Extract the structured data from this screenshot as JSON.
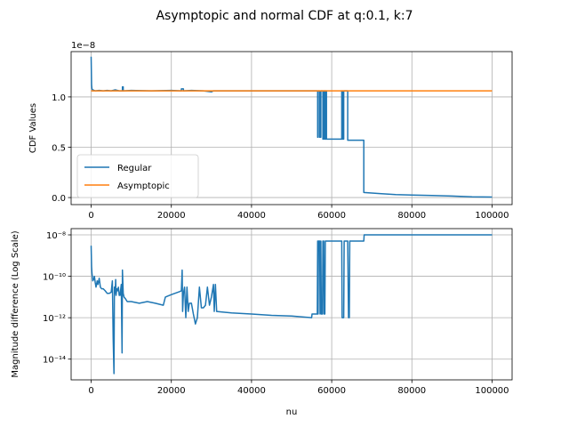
{
  "figure": {
    "title": "Asymptopic and normal CDF at q:0.1, k:7"
  },
  "chart_data": [
    {
      "type": "line",
      "title": "",
      "xlabel": "",
      "ylabel": "CDF Values",
      "y_offset_label": "1e−8",
      "xlim": [
        -5000,
        105000
      ],
      "ylim": [
        -0.07,
        1.45
      ],
      "grid": true,
      "legend_position": "lower-left",
      "x_ticks": [
        0,
        20000,
        40000,
        60000,
        80000,
        100000
      ],
      "x_tick_labels": [
        "0",
        "20000",
        "40000",
        "60000",
        "80000",
        "100000"
      ],
      "y_ticks": [
        0.0,
        0.5,
        1.0
      ],
      "y_tick_labels": [
        "0.0",
        "0.5",
        "1.0"
      ],
      "series": [
        {
          "name": "Regular",
          "color": "#1f77b4",
          "x": [
            0,
            100,
            200,
            400,
            700,
            1000,
            2000,
            3000,
            4000,
            5000,
            6000,
            7000,
            7800,
            7800,
            8000,
            8000,
            10000,
            15000,
            20000,
            22500,
            22500,
            23000,
            23000,
            25000,
            28000,
            30000,
            30500,
            31000,
            35000,
            40000,
            45000,
            50000,
            55000,
            56500,
            56500,
            56600,
            56600,
            57000,
            57000,
            57300,
            57300,
            57800,
            57800,
            58000,
            58000,
            58300,
            58300,
            58500,
            58500,
            58700,
            58700,
            62500,
            62500,
            62700,
            62700,
            63000,
            63000,
            64000,
            64000,
            64400,
            64400,
            68000,
            68000,
            72000,
            76000,
            80000,
            85000,
            90000,
            95000,
            100000
          ],
          "y": [
            1.4,
            1.12,
            1.08,
            1.07,
            1.065,
            1.06,
            1.065,
            1.06,
            1.065,
            1.06,
            1.07,
            1.06,
            1.06,
            1.1,
            1.1,
            1.06,
            1.065,
            1.06,
            1.065,
            1.06,
            1.08,
            1.08,
            1.06,
            1.065,
            1.06,
            1.05,
            1.06,
            1.06,
            1.06,
            1.06,
            1.06,
            1.06,
            1.06,
            1.06,
            0.6,
            0.6,
            1.06,
            1.06,
            0.6,
            0.6,
            1.06,
            1.06,
            0.58,
            0.58,
            1.06,
            1.06,
            0.58,
            0.58,
            1.06,
            1.06,
            0.58,
            0.58,
            1.06,
            1.06,
            0.58,
            0.58,
            1.06,
            1.06,
            0.57,
            0.57,
            0.57,
            0.57,
            0.05,
            0.04,
            0.03,
            0.025,
            0.02,
            0.015,
            0.008,
            0.005
          ]
        },
        {
          "name": "Asymptopic",
          "color": "#ff7f0e",
          "x": [
            0,
            100000
          ],
          "y": [
            1.06,
            1.06
          ]
        }
      ]
    },
    {
      "type": "line",
      "title": "",
      "xlabel": "nu",
      "ylabel": "Magnitude difference (Log Scale)",
      "yscale": "log",
      "xlim": [
        -5000,
        105000
      ],
      "ylim": [
        1e-15,
        2e-08
      ],
      "grid": true,
      "x_ticks": [
        0,
        20000,
        40000,
        60000,
        80000,
        100000
      ],
      "x_tick_labels": [
        "0",
        "20000",
        "40000",
        "60000",
        "80000",
        "100000"
      ],
      "y_ticks": [
        1e-14,
        1e-12,
        1e-10,
        1e-08
      ],
      "y_tick_labels": [
        "10⁻¹⁴",
        "10⁻¹²",
        "10⁻¹⁰",
        "10⁻⁸"
      ],
      "series": [
        {
          "name": "",
          "color": "#1f77b4",
          "x": [
            0,
            100,
            200,
            400,
            600,
            800,
            1000,
            1200,
            1500,
            1700,
            2000,
            2300,
            2600,
            3000,
            3500,
            4000,
            4500,
            5000,
            5300,
            5500,
            5700,
            5800,
            6000,
            6100,
            6200,
            6400,
            6600,
            6800,
            7000,
            7200,
            7500,
            7700,
            7800,
            8000,
            8200,
            8600,
            9000,
            10000,
            12000,
            14000,
            16000,
            18000,
            18500,
            20000,
            22000,
            22500,
            22700,
            22800,
            23000,
            23300,
            23600,
            23900,
            24200,
            24500,
            25000,
            25500,
            26000,
            26500,
            27000,
            27500,
            28000,
            28500,
            29000,
            29500,
            30000,
            30500,
            30700,
            31000,
            31300,
            35000,
            40000,
            45000,
            50000,
            55000,
            55100,
            56400,
            56500,
            56600,
            56700,
            57000,
            57100,
            57300,
            57400,
            57700,
            57800,
            58000,
            58100,
            58300,
            58400,
            58600,
            62500,
            62600,
            62800,
            63000,
            63100,
            64000,
            64200,
            64400,
            64500,
            68000,
            68100,
            72000,
            80000,
            100000
          ],
          "y": [
            3e-09,
            3e-10,
            1.5e-10,
            6e-11,
            7e-11,
            1e-10,
            5e-11,
            3e-11,
            6e-11,
            4e-11,
            8e-11,
            3e-11,
            2.5e-11,
            2.5e-11,
            2e-11,
            1.5e-11,
            1.5e-11,
            1.7e-11,
            6e-11,
            1e-13,
            2e-15,
            3e-11,
            1.5e-11,
            7e-11,
            1.2e-11,
            2.5e-11,
            2e-11,
            3e-11,
            1.2e-11,
            1.2e-11,
            4e-11,
            2e-14,
            2e-10,
            1.5e-11,
            1e-11,
            8e-12,
            6e-12,
            6e-12,
            5e-12,
            6e-12,
            5e-12,
            4e-12,
            1e-11,
            1.3e-11,
            1.8e-11,
            2e-11,
            2e-10,
            2e-12,
            1.5e-11,
            3e-11,
            1e-12,
            3e-11,
            2e-12,
            5e-12,
            5e-12,
            1.5e-12,
            5e-13,
            1e-12,
            3e-11,
            3e-12,
            3e-12,
            4e-12,
            3e-11,
            4e-12,
            1e-11,
            4e-11,
            2e-12,
            4e-11,
            2e-12,
            1.7e-12,
            1.5e-12,
            1.3e-12,
            1.2e-12,
            1e-12,
            1.5e-12,
            1.5e-12,
            5e-09,
            1.5e-12,
            5e-09,
            5e-09,
            1.5e-12,
            5e-09,
            1.5e-12,
            1.5e-12,
            5e-09,
            5e-09,
            1.5e-12,
            1.5e-12,
            5e-09,
            5e-09,
            5e-09,
            1e-12,
            1e-12,
            1e-12,
            5e-09,
            5e-09,
            1e-12,
            1e-12,
            5e-09,
            5e-09,
            1e-08,
            1e-08,
            1e-08,
            1e-08
          ]
        }
      ]
    }
  ]
}
